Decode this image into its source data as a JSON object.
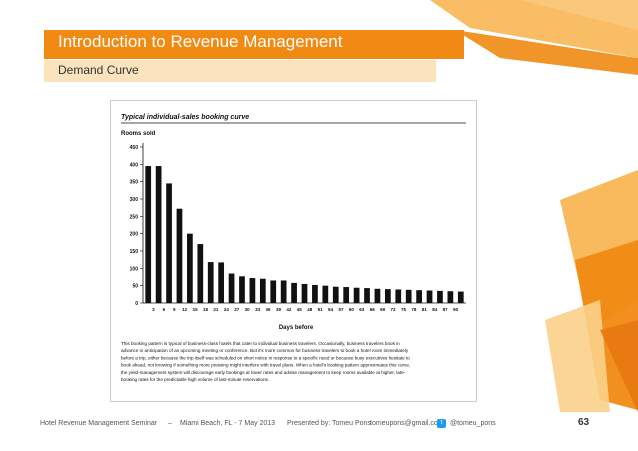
{
  "slide": {
    "title": "Introduction to Revenue Management",
    "subtitle": "Demand Curve",
    "page_number": "63"
  },
  "figure": {
    "caption_lines": [
      "This booking pattern is typical of business-class hotels that cater to individual business travelers. Occasionally, business travelers book in",
      "advance in anticipation of an upcoming meeting or conference. But it's more common for business travelers to book a hotel room immediately",
      "before a trip, either because the trip itself was scheduled on short notice in response to a specific need or because busy executives hesitate to",
      "book ahead, not knowing if something more pressing might interfere with travel plans. When a hotel's booking pattern approximates this curve,",
      "the yield-management system will discourage early bookings at lower rates and advise management to keep rooms available at higher, late-",
      "booking rates for the predictable high volume of last-minute reservations."
    ]
  },
  "chart_data": {
    "type": "bar",
    "title": "Typical individual-sales booking curve",
    "ylabel": "Rooms sold",
    "xlabel": "Days before",
    "ylim": [
      0,
      450
    ],
    "yticks": [
      0,
      50,
      100,
      150,
      200,
      250,
      300,
      350,
      400,
      450
    ],
    "categories": [
      "0",
      "3",
      "6",
      "9",
      "12",
      "15",
      "18",
      "21",
      "24",
      "27",
      "30",
      "33",
      "36",
      "39",
      "42",
      "45",
      "48",
      "51",
      "54",
      "57",
      "60",
      "63",
      "66",
      "69",
      "72",
      "75",
      "78",
      "81",
      "84",
      "87",
      "90"
    ],
    "values": [
      395,
      395,
      345,
      272,
      200,
      170,
      118,
      117,
      85,
      77,
      72,
      70,
      65,
      65,
      58,
      55,
      52,
      50,
      47,
      46,
      44,
      43,
      41,
      40,
      39,
      38,
      37,
      36,
      35,
      34,
      33
    ],
    "xtick_labels": [
      "3",
      "6",
      "9",
      "12",
      "15",
      "18",
      "21",
      "24",
      "27",
      "30",
      "33",
      "36",
      "39",
      "42",
      "45",
      "48",
      "51",
      "54",
      "57",
      "60",
      "63",
      "66",
      "69",
      "72",
      "75",
      "78",
      "81",
      "84",
      "87",
      "90"
    ],
    "grid": false,
    "bar_color": "#111111"
  },
  "footer": {
    "seminar": "Hotel Revenue Management Seminar",
    "separator1": "–",
    "location_date": "Miami Beach, FL  -  7 May 2013",
    "presented_by": "Presented by:   Tomeu Pons",
    "email": "tomeupons@gmail.com",
    "twitter": "@tomeu_pons",
    "twitter_icon": "twitter-icon"
  },
  "colors": {
    "accent_orange": "#f08a12",
    "accent_light": "#fbe3bd"
  }
}
